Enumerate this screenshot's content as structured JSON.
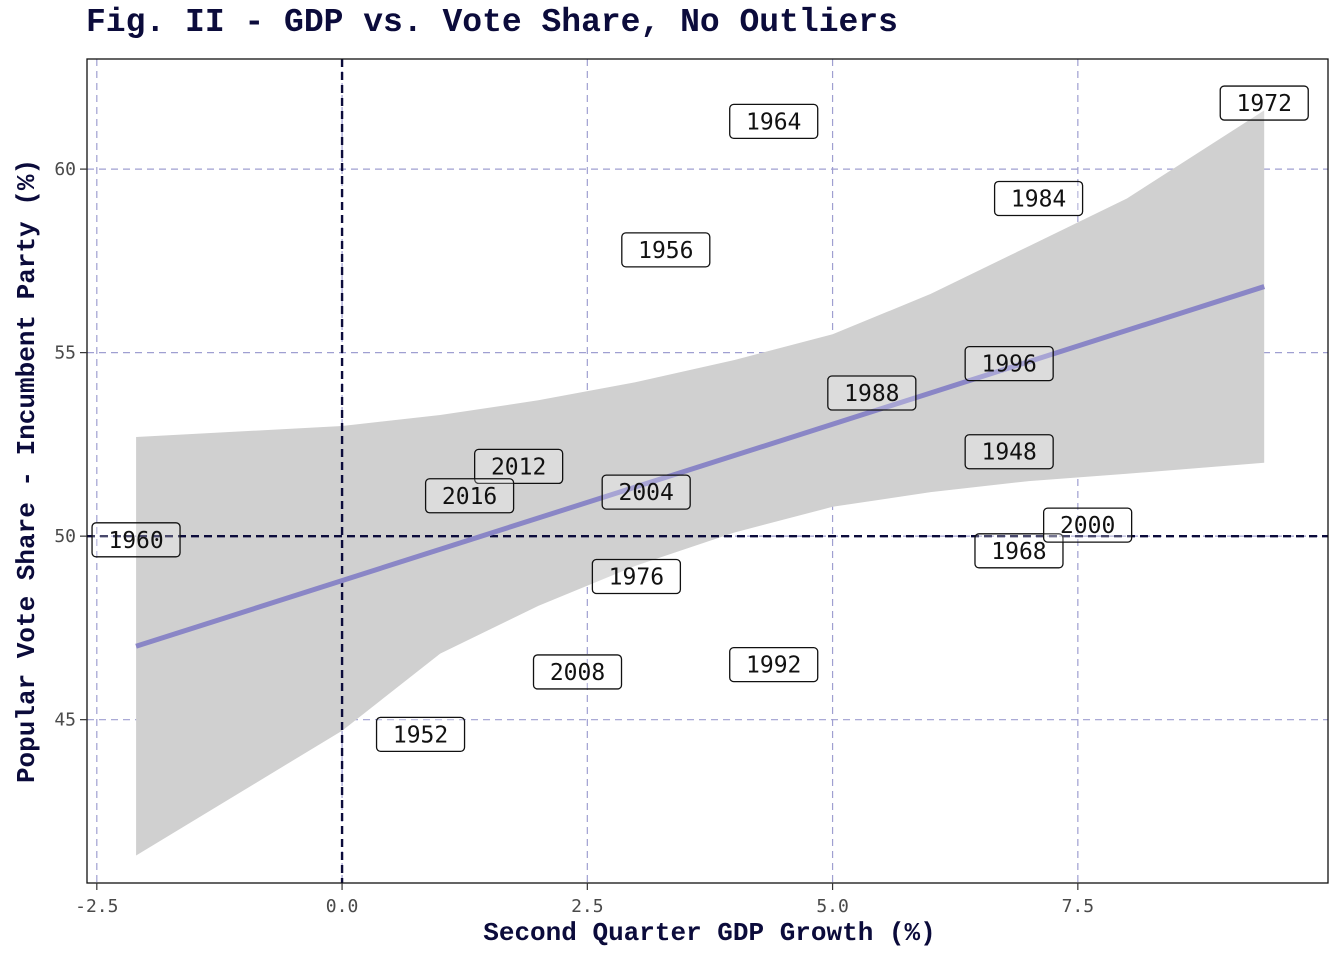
{
  "chart_data": {
    "type": "scatter",
    "title": "Fig. II - GDP vs. Vote Share, No Outliers",
    "xlabel": "Second Quarter GDP Growth (%)",
    "ylabel": "Popular Vote Share - Incumbent Party (%)",
    "xlim": [
      -2.6,
      10.05
    ],
    "ylim": [
      40.55,
      63
    ],
    "x_ticks": [
      -2.5,
      0.0,
      2.5,
      5.0,
      7.5
    ],
    "x_tick_labels": [
      "-2.5",
      "0.0",
      "2.5",
      "5.0",
      "7.5"
    ],
    "y_ticks": [
      45,
      50,
      55,
      60
    ],
    "y_tick_labels": [
      "45",
      "50",
      "55",
      "60"
    ],
    "grid": true,
    "reference_lines": {
      "x": 0,
      "y": 50
    },
    "points": [
      {
        "label": "1948",
        "x": 6.8,
        "y": 52.3
      },
      {
        "label": "1952",
        "x": 0.8,
        "y": 44.6
      },
      {
        "label": "1956",
        "x": 3.3,
        "y": 57.8
      },
      {
        "label": "1960",
        "x": -2.1,
        "y": 49.9
      },
      {
        "label": "1964",
        "x": 4.4,
        "y": 61.3
      },
      {
        "label": "1968",
        "x": 6.9,
        "y": 49.6
      },
      {
        "label": "1972",
        "x": 9.4,
        "y": 61.8
      },
      {
        "label": "1976",
        "x": 3.0,
        "y": 48.9
      },
      {
        "label": "1984",
        "x": 7.1,
        "y": 59.2
      },
      {
        "label": "1988",
        "x": 5.4,
        "y": 53.9
      },
      {
        "label": "1992",
        "x": 4.4,
        "y": 46.5
      },
      {
        "label": "1996",
        "x": 6.8,
        "y": 54.7
      },
      {
        "label": "2000",
        "x": 7.6,
        "y": 50.3
      },
      {
        "label": "2004",
        "x": 3.1,
        "y": 51.2
      },
      {
        "label": "2008",
        "x": 2.4,
        "y": 46.3
      },
      {
        "label": "2012",
        "x": 1.8,
        "y": 51.9
      },
      {
        "label": "2016",
        "x": 1.3,
        "y": 51.1
      }
    ],
    "trend_line": {
      "x": [
        -2.1,
        9.4
      ],
      "y": [
        47.0,
        56.8
      ]
    },
    "confidence_band": {
      "x": [
        -2.1,
        0.0,
        1.0,
        2.0,
        3.0,
        4.0,
        5.0,
        6.0,
        7.0,
        8.0,
        9.4
      ],
      "lower": [
        41.3,
        44.7,
        46.8,
        48.1,
        49.2,
        50.1,
        50.8,
        51.2,
        51.5,
        51.7,
        52.0
      ],
      "upper": [
        52.7,
        53.0,
        53.3,
        53.7,
        54.2,
        54.8,
        55.5,
        56.6,
        57.9,
        59.2,
        61.6
      ]
    },
    "colors": {
      "trend": "#8a86c6",
      "band": "#d0d0d0",
      "grid": "#9f9fd1",
      "reference": "#0b0b3b",
      "text": "#0b0b3b"
    }
  }
}
